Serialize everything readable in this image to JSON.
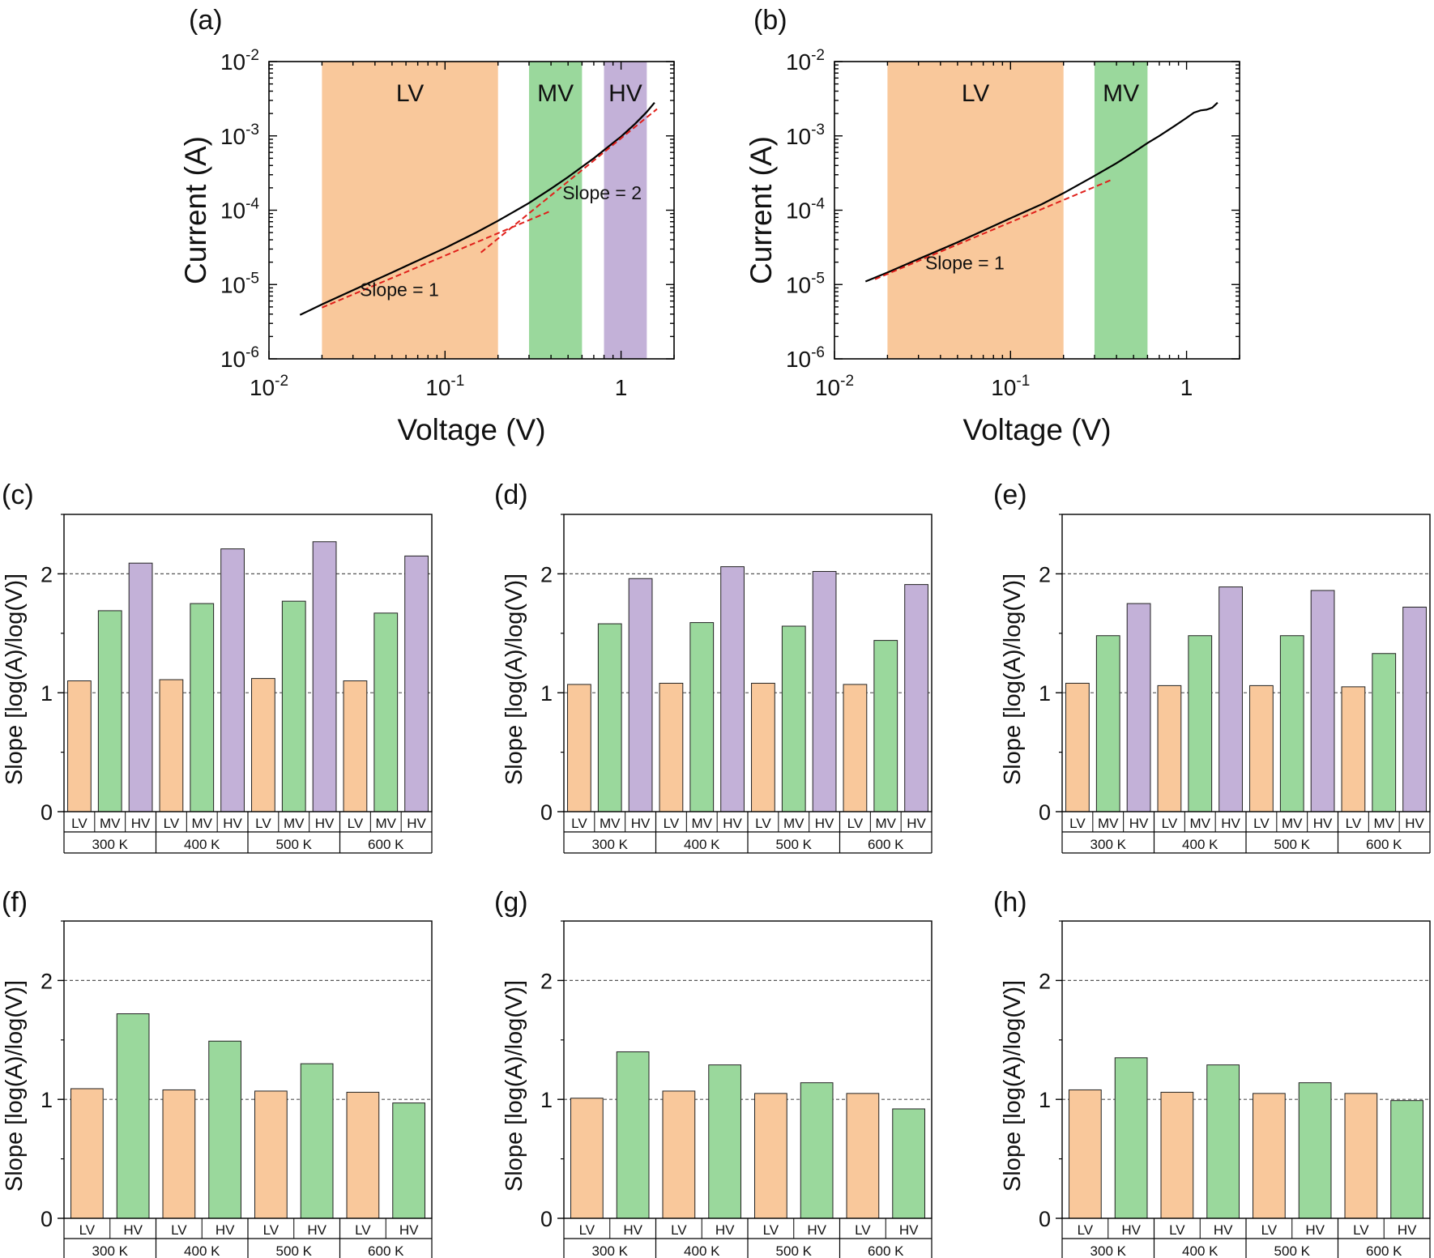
{
  "colors": {
    "lv": "#f9c89b",
    "mv": "#9ad89c",
    "hv": "#c3b1d8",
    "curve": "#000000",
    "fit": "#e0201b",
    "axis": "#000000",
    "gridline": "#555555"
  },
  "chart_data": [
    {
      "panel": "(a)",
      "type": "line",
      "xscale": "log",
      "yscale": "log",
      "xlabel": "Voltage (V)",
      "ylabel": "Current (A)",
      "xlim": [
        0.01,
        2
      ],
      "ylim": [
        1e-06,
        0.01
      ],
      "x_ticks": [
        {
          "value": 0.01,
          "base": "10",
          "exp": "-2"
        },
        {
          "value": 0.1,
          "base": "10",
          "exp": "-1"
        },
        {
          "value": 1,
          "base": "1",
          "exp": ""
        }
      ],
      "y_ticks": [
        {
          "value": 1e-06,
          "base": "10",
          "exp": "-6"
        },
        {
          "value": 1e-05,
          "base": "10",
          "exp": "-5"
        },
        {
          "value": 0.0001,
          "base": "10",
          "exp": "-4"
        },
        {
          "value": 0.001,
          "base": "10",
          "exp": "-3"
        },
        {
          "value": 0.01,
          "base": "10",
          "exp": "-2"
        }
      ],
      "regions": [
        {
          "label": "LV",
          "x0": 0.02,
          "x1": 0.2,
          "color_key": "lv"
        },
        {
          "label": "MV",
          "x0": 0.3,
          "x1": 0.6,
          "color_key": "mv"
        },
        {
          "label": "HV",
          "x0": 0.8,
          "x1": 1.4,
          "color_key": "hv"
        }
      ],
      "curve": {
        "x": [
          0.015,
          0.02,
          0.03,
          0.05,
          0.07,
          0.1,
          0.15,
          0.2,
          0.3,
          0.4,
          0.5,
          0.7,
          1.0,
          1.2,
          1.4,
          1.55
        ],
        "y": [
          3.9e-06,
          5.4e-06,
          8.4e-06,
          1.45e-05,
          2.1e-05,
          3.1e-05,
          5e-05,
          7.2e-05,
          0.000125,
          0.000195,
          0.00028,
          0.0005,
          0.00098,
          0.00145,
          0.0021,
          0.0028
        ]
      },
      "fits": [
        {
          "x": [
            0.02,
            0.4
          ],
          "y": [
            4.9e-06,
            9.8e-05
          ]
        },
        {
          "x": [
            0.16,
            1.6
          ],
          "y": [
            2.7e-05,
            0.0023
          ]
        }
      ],
      "annotations": [
        {
          "text": "Slope = 1",
          "x": 0.055,
          "y": 7e-06
        },
        {
          "text": "Slope = 2",
          "x": 0.78,
          "y": 0.00014
        }
      ]
    },
    {
      "panel": "(b)",
      "type": "line",
      "xscale": "log",
      "yscale": "log",
      "xlabel": "Voltage (V)",
      "ylabel": "Current (A)",
      "xlim": [
        0.01,
        2
      ],
      "ylim": [
        1e-06,
        0.01
      ],
      "x_ticks": [
        {
          "value": 0.01,
          "base": "10",
          "exp": "-2"
        },
        {
          "value": 0.1,
          "base": "10",
          "exp": "-1"
        },
        {
          "value": 1,
          "base": "1",
          "exp": ""
        }
      ],
      "y_ticks": [
        {
          "value": 1e-06,
          "base": "10",
          "exp": "-6"
        },
        {
          "value": 1e-05,
          "base": "10",
          "exp": "-5"
        },
        {
          "value": 0.0001,
          "base": "10",
          "exp": "-4"
        },
        {
          "value": 0.001,
          "base": "10",
          "exp": "-3"
        },
        {
          "value": 0.01,
          "base": "10",
          "exp": "-2"
        }
      ],
      "regions": [
        {
          "label": "LV",
          "x0": 0.02,
          "x1": 0.2,
          "color_key": "lv"
        },
        {
          "label": "MV",
          "x0": 0.3,
          "x1": 0.6,
          "color_key": "mv"
        }
      ],
      "curve": {
        "x": [
          0.015,
          0.02,
          0.03,
          0.05,
          0.07,
          0.1,
          0.15,
          0.2,
          0.3,
          0.4,
          0.5,
          0.6,
          0.7,
          0.85,
          1.0,
          1.1,
          1.2,
          1.3,
          1.4,
          1.5
        ],
        "y": [
          1.1e-05,
          1.45e-05,
          2.2e-05,
          3.7e-05,
          5.3e-05,
          7.8e-05,
          0.00012,
          0.00017,
          0.00029,
          0.00043,
          0.0006,
          0.0008,
          0.001,
          0.00135,
          0.00175,
          0.00205,
          0.0022,
          0.00225,
          0.0024,
          0.0028
        ]
      },
      "fits": [
        {
          "x": [
            0.017,
            0.38
          ],
          "y": [
            1.18e-05,
            0.00026
          ]
        }
      ],
      "annotations": [
        {
          "text": "Slope = 1",
          "x": 0.055,
          "y": 1.6e-05
        }
      ]
    },
    {
      "panel": "(c)",
      "type": "bar",
      "ylabel": "Slope [log(A)/log(V)]",
      "ylim": [
        0,
        2.5
      ],
      "y_ticks": [
        0,
        1,
        2
      ],
      "reference_lines": [
        1,
        2
      ],
      "categories": [
        "300 K",
        "400 K",
        "500 K",
        "600 K"
      ],
      "series": [
        {
          "name": "LV",
          "color_key": "lv",
          "values": [
            1.1,
            1.11,
            1.12,
            1.1
          ]
        },
        {
          "name": "MV",
          "color_key": "mv",
          "values": [
            1.69,
            1.75,
            1.77,
            1.67
          ]
        },
        {
          "name": "HV",
          "color_key": "hv",
          "values": [
            2.09,
            2.21,
            2.27,
            2.15
          ]
        }
      ]
    },
    {
      "panel": "(d)",
      "type": "bar",
      "ylabel": "Slope [log(A)/log(V)]",
      "ylim": [
        0,
        2.5
      ],
      "y_ticks": [
        0,
        1,
        2
      ],
      "reference_lines": [
        1,
        2
      ],
      "categories": [
        "300 K",
        "400 K",
        "500 K",
        "600 K"
      ],
      "series": [
        {
          "name": "LV",
          "color_key": "lv",
          "values": [
            1.07,
            1.08,
            1.08,
            1.07
          ]
        },
        {
          "name": "MV",
          "color_key": "mv",
          "values": [
            1.58,
            1.59,
            1.56,
            1.44
          ]
        },
        {
          "name": "HV",
          "color_key": "hv",
          "values": [
            1.96,
            2.06,
            2.02,
            1.91
          ]
        }
      ]
    },
    {
      "panel": "(e)",
      "type": "bar",
      "ylabel": "Slope [log(A)/log(V)]",
      "ylim": [
        0,
        2.5
      ],
      "y_ticks": [
        0,
        1,
        2
      ],
      "reference_lines": [
        1,
        2
      ],
      "categories": [
        "300 K",
        "400 K",
        "500 K",
        "600 K"
      ],
      "series": [
        {
          "name": "LV",
          "color_key": "lv",
          "values": [
            1.08,
            1.06,
            1.06,
            1.05
          ]
        },
        {
          "name": "MV",
          "color_key": "mv",
          "values": [
            1.48,
            1.48,
            1.48,
            1.33
          ]
        },
        {
          "name": "HV",
          "color_key": "hv",
          "values": [
            1.75,
            1.89,
            1.86,
            1.72
          ]
        }
      ]
    },
    {
      "panel": "(f)",
      "type": "bar",
      "ylabel": "Slope [log(A)/log(V)]",
      "ylim": [
        0,
        2.5
      ],
      "y_ticks": [
        0,
        1,
        2
      ],
      "reference_lines": [
        1,
        2
      ],
      "categories": [
        "300 K",
        "400 K",
        "500 K",
        "600 K"
      ],
      "series": [
        {
          "name": "LV",
          "color_key": "lv",
          "values": [
            1.09,
            1.08,
            1.07,
            1.06
          ]
        },
        {
          "name": "HV",
          "color_key": "mv",
          "values": [
            1.72,
            1.49,
            1.3,
            0.97
          ]
        }
      ]
    },
    {
      "panel": "(g)",
      "type": "bar",
      "ylabel": "Slope [log(A)/log(V)]",
      "ylim": [
        0,
        2.5
      ],
      "y_ticks": [
        0,
        1,
        2
      ],
      "reference_lines": [
        1,
        2
      ],
      "categories": [
        "300 K",
        "400 K",
        "500 K",
        "600 K"
      ],
      "series": [
        {
          "name": "LV",
          "color_key": "lv",
          "values": [
            1.01,
            1.07,
            1.05,
            1.05
          ]
        },
        {
          "name": "HV",
          "color_key": "mv",
          "values": [
            1.4,
            1.29,
            1.14,
            0.92
          ]
        }
      ]
    },
    {
      "panel": "(h)",
      "type": "bar",
      "ylabel": "Slope [log(A)/log(V)]",
      "ylim": [
        0,
        2.5
      ],
      "y_ticks": [
        0,
        1,
        2
      ],
      "reference_lines": [
        1,
        2
      ],
      "categories": [
        "300 K",
        "400 K",
        "500 K",
        "600 K"
      ],
      "series": [
        {
          "name": "LV",
          "color_key": "lv",
          "values": [
            1.08,
            1.06,
            1.05,
            1.05
          ]
        },
        {
          "name": "HV",
          "color_key": "mv",
          "values": [
            1.35,
            1.29,
            1.14,
            0.99
          ]
        }
      ]
    }
  ]
}
